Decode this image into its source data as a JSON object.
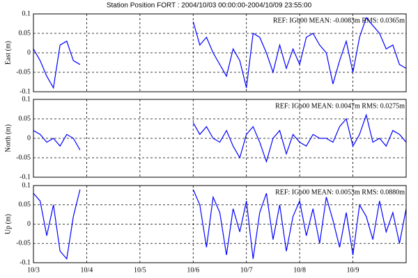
{
  "title": "Station Position FORT  : 2004/10/03 00:00:00-2004/10/09 23:55:00",
  "chart_data": [
    {
      "type": "line",
      "ylabel": "East (m)",
      "annotation": "REF: IGb00  MEAN: -0.0083m RMS: 0.0365m",
      "color": "#0000ff",
      "grid": true,
      "xlim": [
        0,
        7
      ],
      "ylim": [
        -0.1,
        0.1
      ],
      "yticks": [
        0.1,
        0.05,
        0,
        -0.05,
        -0.1
      ],
      "x": [
        0,
        0.125,
        0.25,
        0.375,
        0.5,
        0.625,
        0.75,
        0.875,
        1,
        1.125,
        1.25,
        1.375,
        1.5,
        1.625,
        1.75,
        1.875,
        2,
        2.125,
        2.25,
        2.375,
        2.5,
        2.625,
        2.75,
        2.875,
        3,
        3.125,
        3.25,
        3.375,
        3.5,
        3.625,
        3.75,
        3.875,
        4,
        4.125,
        4.25,
        4.375,
        4.5,
        4.625,
        4.75,
        4.875,
        5,
        5.125,
        5.25,
        5.375,
        5.5,
        5.625,
        5.75,
        5.875,
        6,
        6.125,
        6.25,
        6.375,
        6.5,
        6.625,
        6.75,
        6.875,
        7
      ],
      "values": [
        0.01,
        -0.02,
        -0.06,
        -0.09,
        0.02,
        0.03,
        -0.02,
        -0.03,
        null,
        null,
        null,
        null,
        null,
        null,
        null,
        null,
        null,
        null,
        null,
        null,
        null,
        null,
        null,
        null,
        0.08,
        0.02,
        0.04,
        0.0,
        -0.03,
        -0.06,
        0.01,
        -0.02,
        -0.09,
        0.05,
        0.04,
        0.0,
        -0.05,
        0.02,
        -0.04,
        0.01,
        -0.03,
        0.04,
        0.05,
        0.02,
        0.0,
        -0.08,
        -0.02,
        0.03,
        -0.05,
        0.04,
        0.09,
        0.07,
        0.05,
        0.01,
        0.02,
        -0.03,
        -0.04
      ]
    },
    {
      "type": "line",
      "ylabel": "North (m)",
      "annotation": "REF: IGb00  MEAN: 0.0047m RMS: 0.0275m",
      "color": "#0000ff",
      "grid": true,
      "xlim": [
        0,
        7
      ],
      "ylim": [
        -0.1,
        0.1
      ],
      "yticks": [
        0.1,
        0.05,
        0,
        -0.05,
        -0.1
      ],
      "x": [
        0,
        0.125,
        0.25,
        0.375,
        0.5,
        0.625,
        0.75,
        0.875,
        1,
        1.125,
        1.25,
        1.375,
        1.5,
        1.625,
        1.75,
        1.875,
        2,
        2.125,
        2.25,
        2.375,
        2.5,
        2.625,
        2.75,
        2.875,
        3,
        3.125,
        3.25,
        3.375,
        3.5,
        3.625,
        3.75,
        3.875,
        4,
        4.125,
        4.25,
        4.375,
        4.5,
        4.625,
        4.75,
        4.875,
        5,
        5.125,
        5.25,
        5.375,
        5.5,
        5.625,
        5.75,
        5.875,
        6,
        6.125,
        6.25,
        6.375,
        6.5,
        6.625,
        6.75,
        6.875,
        7
      ],
      "values": [
        0.02,
        0.01,
        -0.01,
        0.0,
        -0.02,
        0.01,
        0.0,
        -0.03,
        null,
        null,
        null,
        null,
        null,
        null,
        null,
        null,
        null,
        null,
        null,
        null,
        null,
        null,
        null,
        null,
        0.04,
        0.01,
        0.03,
        0.0,
        -0.01,
        0.02,
        -0.02,
        -0.05,
        0.01,
        0.03,
        -0.01,
        -0.06,
        0.0,
        0.02,
        -0.04,
        0.01,
        -0.01,
        -0.02,
        0.01,
        0.0,
        0.0,
        -0.01,
        0.03,
        0.05,
        -0.02,
        0.01,
        0.06,
        -0.01,
        0.0,
        -0.02,
        0.02,
        0.01,
        -0.01
      ]
    },
    {
      "type": "line",
      "ylabel": "Up (m)",
      "annotation": "REF: IGb00  MEAN: 0.0053m RMS: 0.0880m",
      "color": "#0000ff",
      "grid": true,
      "xlim": [
        0,
        7
      ],
      "ylim": [
        -0.1,
        0.1
      ],
      "yticks": [
        0.1,
        0.05,
        0,
        -0.05,
        -0.1
      ],
      "xticks": [
        {
          "value": 0,
          "label": "10/3"
        },
        {
          "value": 1,
          "label": "10/4"
        },
        {
          "value": 2,
          "label": "10/5"
        },
        {
          "value": 3,
          "label": "10/6"
        },
        {
          "value": 4,
          "label": "10/7"
        },
        {
          "value": 5,
          "label": "10/8"
        },
        {
          "value": 6,
          "label": "10/9"
        }
      ],
      "x": [
        0,
        0.125,
        0.25,
        0.375,
        0.5,
        0.625,
        0.75,
        0.875,
        1,
        1.125,
        1.25,
        1.375,
        1.5,
        1.625,
        1.75,
        1.875,
        2,
        2.125,
        2.25,
        2.375,
        2.5,
        2.625,
        2.75,
        2.875,
        3,
        3.125,
        3.25,
        3.375,
        3.5,
        3.625,
        3.75,
        3.875,
        4,
        4.125,
        4.25,
        4.375,
        4.5,
        4.625,
        4.75,
        4.875,
        5,
        5.125,
        5.25,
        5.375,
        5.5,
        5.625,
        5.75,
        5.875,
        6,
        6.125,
        6.25,
        6.375,
        6.5,
        6.625,
        6.75,
        6.875,
        7
      ],
      "values": [
        0.08,
        0.06,
        -0.03,
        0.05,
        -0.07,
        -0.09,
        0.02,
        0.09,
        null,
        null,
        null,
        null,
        null,
        null,
        null,
        null,
        null,
        null,
        null,
        null,
        null,
        null,
        null,
        null,
        0.09,
        0.05,
        -0.06,
        0.07,
        0.03,
        -0.08,
        0.04,
        -0.02,
        0.06,
        -0.09,
        0.03,
        0.08,
        -0.04,
        0.05,
        -0.07,
        0.02,
        0.06,
        -0.03,
        0.04,
        -0.05,
        0.07,
        0.01,
        -0.06,
        0.03,
        -0.08,
        0.05,
        0.02,
        -0.04,
        0.06,
        -0.02,
        0.03,
        -0.05,
        0.04
      ]
    }
  ]
}
